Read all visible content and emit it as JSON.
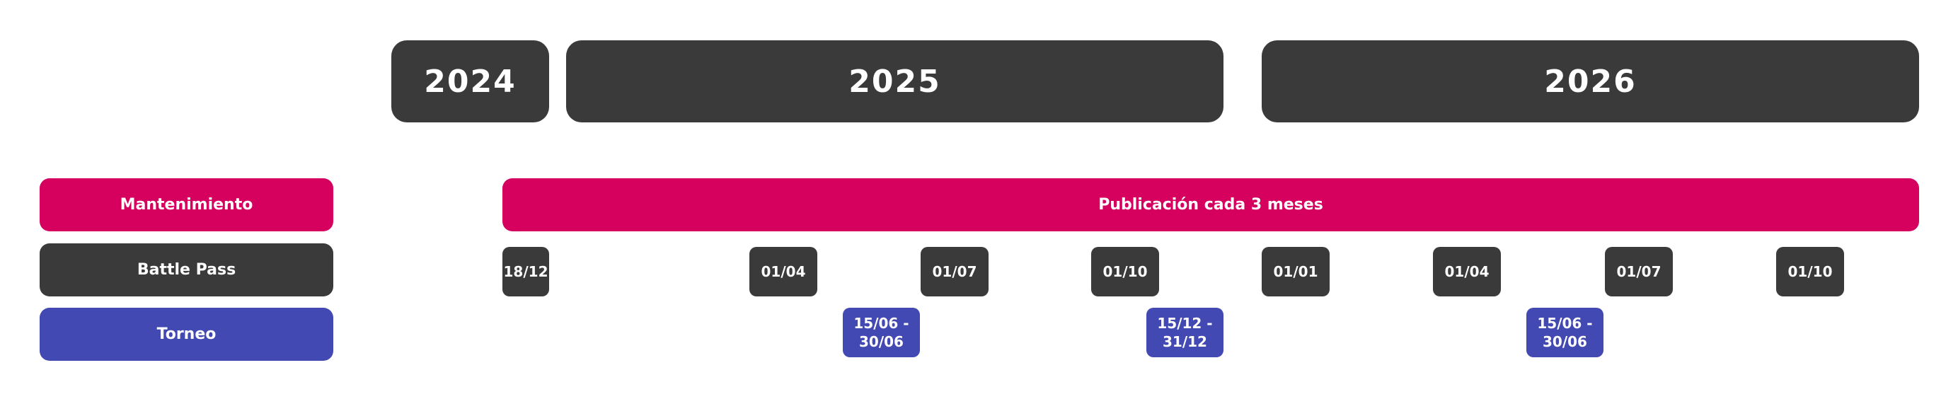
{
  "years": [
    "2024",
    "2025",
    "2026"
  ],
  "rows": {
    "maintenance": {
      "label": "Mantenimiento",
      "bar_text": "Publicación cada 3 meses"
    },
    "battle_pass": {
      "label": "Battle Pass",
      "dates": [
        "18/12",
        "01/04",
        "01/07",
        "01/10",
        "01/01",
        "01/04",
        "01/07",
        "01/10"
      ]
    },
    "tournament": {
      "label": "Torneo",
      "periods": [
        "15/06 -\n30/06",
        "15/12 -\n31/12",
        "15/06 -\n30/06"
      ]
    }
  },
  "colors": {
    "dark": "#3a3a3a",
    "maintenance": "#d6005f",
    "tournament": "#4349b3"
  }
}
